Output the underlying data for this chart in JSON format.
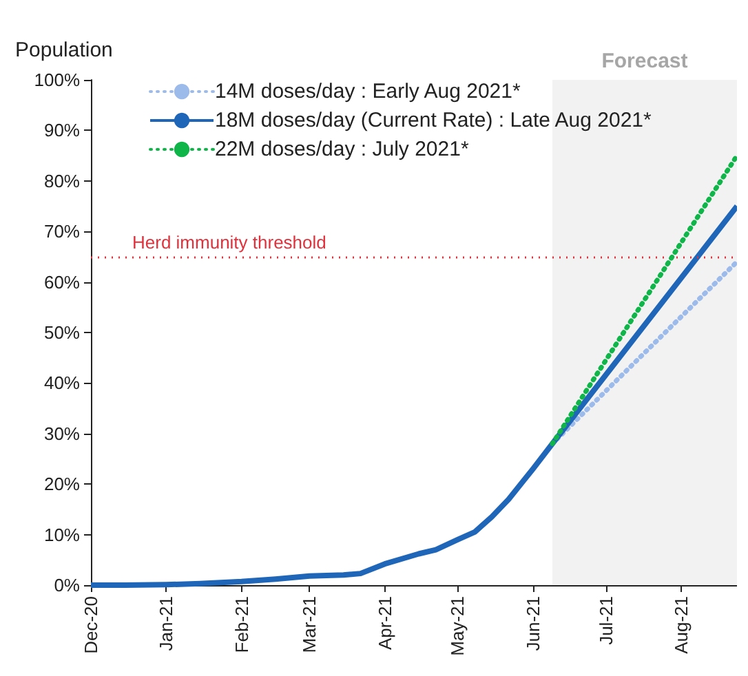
{
  "chart_data": {
    "type": "line",
    "ylabel": "Population",
    "xlim": [
      "2020-12-01",
      "2021-08-24"
    ],
    "xticks": [
      {
        "value": "2020-12-01",
        "label": "Dec-20"
      },
      {
        "value": "2021-01-01",
        "label": "Jan-21"
      },
      {
        "value": "2021-02-01",
        "label": "Feb-21"
      },
      {
        "value": "2021-03-01",
        "label": "Mar-21"
      },
      {
        "value": "2021-04-01",
        "label": "Apr-21"
      },
      {
        "value": "2021-05-01",
        "label": "May-21"
      },
      {
        "value": "2021-06-01",
        "label": "Jun-21"
      },
      {
        "value": "2021-07-01",
        "label": "Jul-21"
      },
      {
        "value": "2021-08-01",
        "label": "Aug-21"
      }
    ],
    "ylim": [
      0,
      100
    ],
    "yticks": [
      {
        "value": 0,
        "label": "0%"
      },
      {
        "value": 10,
        "label": "10%"
      },
      {
        "value": 20,
        "label": "20%"
      },
      {
        "value": 30,
        "label": "30%"
      },
      {
        "value": 40,
        "label": "40%"
      },
      {
        "value": 50,
        "label": "50%"
      },
      {
        "value": 60,
        "label": "60%"
      },
      {
        "value": 70,
        "label": "70%"
      },
      {
        "value": 80,
        "label": "80%"
      },
      {
        "value": 90,
        "label": "90%"
      },
      {
        "value": 100,
        "label": "100%"
      }
    ],
    "series": [
      {
        "name": "14M doses/day : Early Aug 2021*",
        "color": "#9dbbea",
        "line_style": "dotted",
        "x": [
          "2021-06-09",
          "2021-08-24"
        ],
        "values": [
          28,
          64
        ]
      },
      {
        "name": "18M doses/day (Current Rate) : Late Aug 2021*",
        "color": "#1f66b8",
        "line_style": "solid",
        "x": [
          "2020-12-01",
          "2020-12-15",
          "2021-01-01",
          "2021-01-15",
          "2021-02-01",
          "2021-02-15",
          "2021-03-01",
          "2021-03-15",
          "2021-03-22",
          "2021-04-01",
          "2021-04-15",
          "2021-04-22",
          "2021-05-01",
          "2021-05-08",
          "2021-05-15",
          "2021-05-22",
          "2021-06-01",
          "2021-06-09",
          "2021-08-24"
        ],
        "values": [
          0,
          0,
          0.1,
          0.3,
          0.7,
          1.2,
          1.8,
          2.0,
          2.3,
          4.2,
          6.2,
          7.0,
          9.0,
          10.5,
          13.5,
          17,
          23,
          28,
          75
        ]
      },
      {
        "name": "22M doses/day : July 2021*",
        "color": "#10b54a",
        "line_style": "dotted",
        "x": [
          "2021-06-09",
          "2021-08-24"
        ],
        "values": [
          28,
          85
        ]
      }
    ],
    "ref_lines": [
      {
        "axis": "y",
        "value": 65,
        "label": "Herd immunity threshold",
        "color": "#e0323c",
        "line_style": "dotted"
      }
    ],
    "bands": [
      {
        "axis": "x",
        "from": "2021-06-09",
        "to": "2021-08-24",
        "label": "Forecast",
        "color": "#f2f2f2"
      }
    ],
    "marker": "none",
    "grid": false,
    "legend": "top left"
  }
}
